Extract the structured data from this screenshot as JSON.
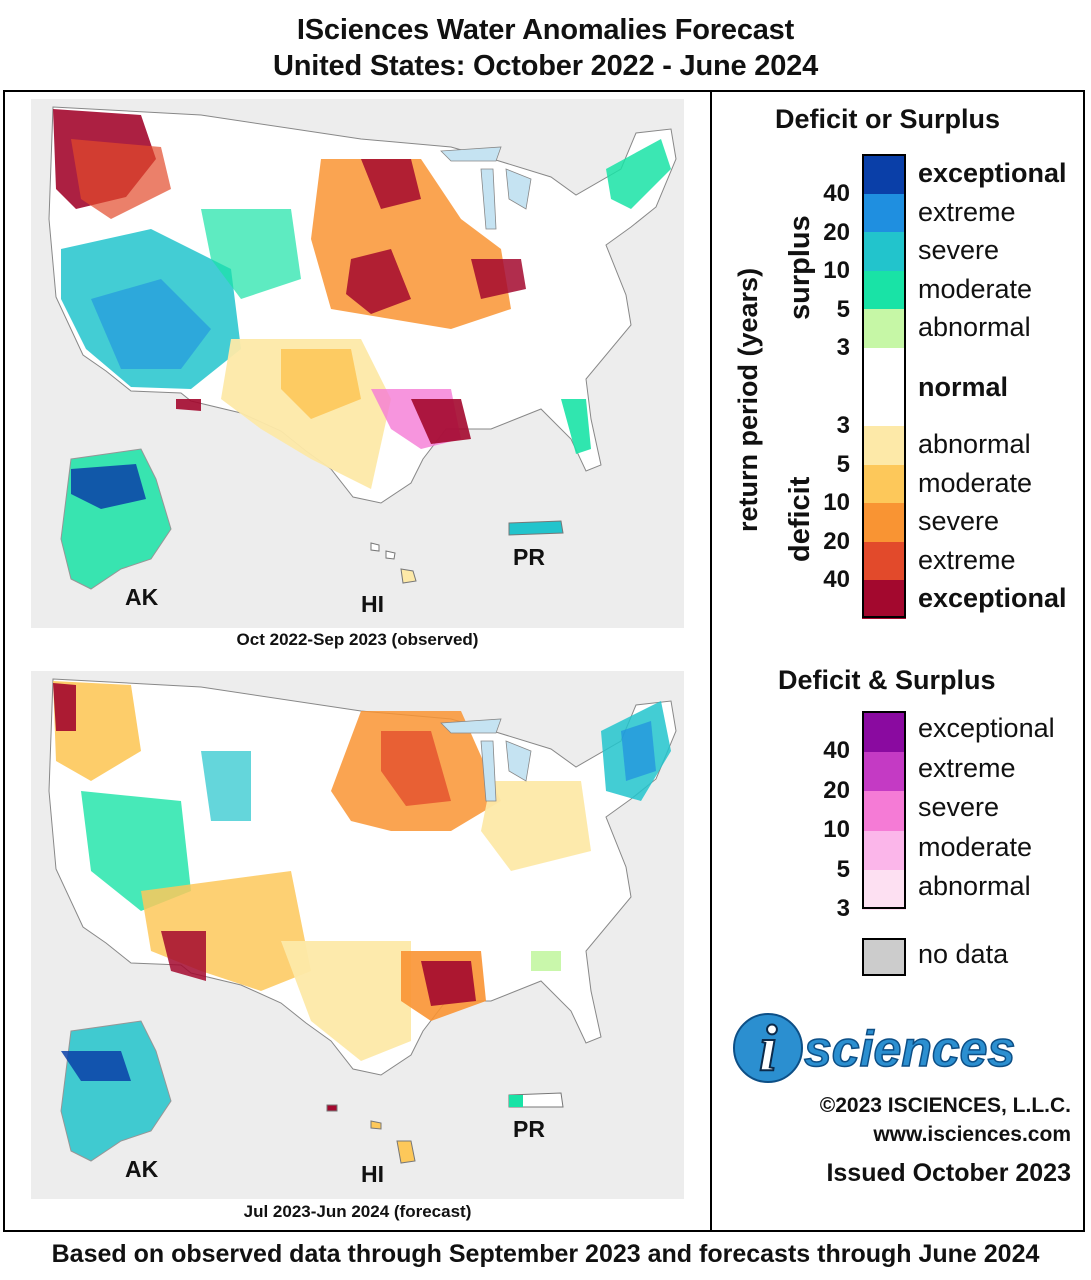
{
  "header": {
    "title_line1": "ISciences Water Anomalies Forecast",
    "title_line2": "United States: October 2022 - June 2024"
  },
  "maps": [
    {
      "caption": "Oct 2022-Sep 2023 (observed)",
      "labels": {
        "ak": "AK",
        "hi": "HI",
        "pr": "PR"
      }
    },
    {
      "caption": "Jul 2023-Jun 2024 (forecast)",
      "labels": {
        "ak": "AK",
        "hi": "HI",
        "pr": "PR"
      }
    }
  ],
  "legend": {
    "title_main": "Deficit or Surplus",
    "axis_label": "return period (years)",
    "surplus_label": "surplus",
    "deficit_label": "deficit",
    "surplus_classes": [
      {
        "label": "exceptional",
        "color": "#0a3fa8",
        "bold": true
      },
      {
        "label": "extreme",
        "color": "#1f8fe0",
        "bold": false
      },
      {
        "label": "severe",
        "color": "#22c4cc",
        "bold": false
      },
      {
        "label": "moderate",
        "color": "#19e3a6",
        "bold": false
      },
      {
        "label": "abnormal",
        "color": "#c6f7a6",
        "bold": false
      }
    ],
    "normal": {
      "label": "normal",
      "color": "#ffffff"
    },
    "deficit_classes": [
      {
        "label": "abnormal",
        "color": "#fde9a8",
        "bold": false
      },
      {
        "label": "moderate",
        "color": "#fdc85a",
        "bold": false
      },
      {
        "label": "severe",
        "color": "#f99433",
        "bold": false
      },
      {
        "label": "extreme",
        "color": "#e24a2b",
        "bold": false
      },
      {
        "label": "exceptional",
        "color": "#a3082e",
        "bold": true
      }
    ],
    "surplus_return_periods": [
      "40",
      "20",
      "10",
      "5",
      "3"
    ],
    "deficit_return_periods": [
      "3",
      "5",
      "10",
      "20",
      "40"
    ],
    "title_both": "Deficit & Surplus",
    "both_classes": [
      {
        "label": "exceptional",
        "color": "#8a0aa0"
      },
      {
        "label": "extreme",
        "color": "#c43ac4"
      },
      {
        "label": "severe",
        "color": "#f57bd6"
      },
      {
        "label": "moderate",
        "color": "#fbb6ea"
      },
      {
        "label": "abnormal",
        "color": "#fde0f2"
      }
    ],
    "both_return_periods": [
      "40",
      "20",
      "10",
      "5",
      "3"
    ],
    "no_data": {
      "label": "no data",
      "color": "#cccccc"
    }
  },
  "branding": {
    "logo_i": "i",
    "logo_text": "sciences",
    "copyright": "©2023 ISCIENCES, L.L.C.",
    "website": "www.isciences.com",
    "issued": "Issued October 2023"
  },
  "footer": "Based on observed data through September 2023 and forecasts through June 2024"
}
